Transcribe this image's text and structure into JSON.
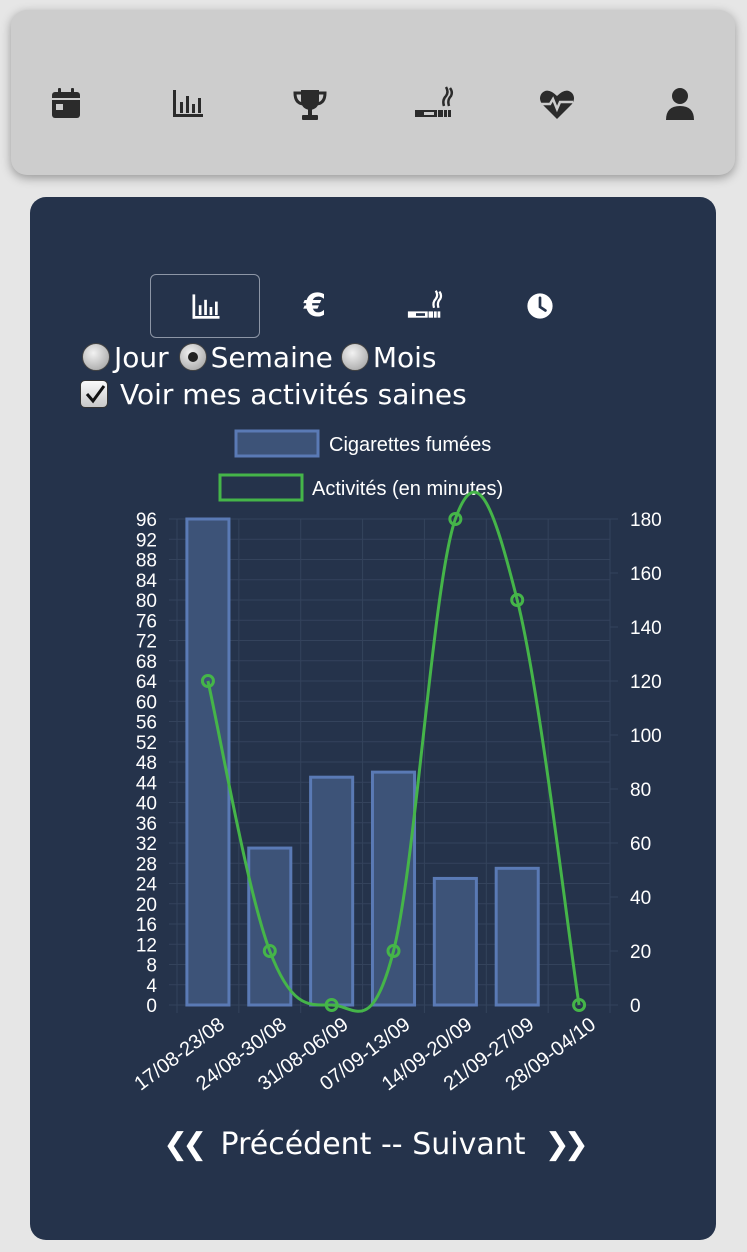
{
  "nav": {
    "items": [
      {
        "name": "calendar-icon"
      },
      {
        "name": "bar-chart-icon"
      },
      {
        "name": "trophy-icon"
      },
      {
        "name": "cigarette-icon"
      },
      {
        "name": "heart-pulse-icon"
      },
      {
        "name": "user-icon"
      }
    ]
  },
  "tabs": [
    {
      "name": "bar-chart-icon",
      "selected": true
    },
    {
      "name": "euro-icon",
      "label": "€",
      "selected": false
    },
    {
      "name": "cigarette-icon",
      "selected": false
    },
    {
      "name": "clock-icon",
      "selected": false
    }
  ],
  "period": {
    "options": [
      "Jour",
      "Semaine",
      "Mois"
    ],
    "selected": "Semaine"
  },
  "healthy_toggle": {
    "label": "Voir mes activités saines",
    "checked": true
  },
  "pager": {
    "prev_label": "Précédent",
    "separator": "--",
    "next_label": "Suivant"
  },
  "colors": {
    "card": "#25334b",
    "bar_fill": "#3d5378",
    "bar_stroke": "#5a7ab5",
    "line": "#45b549",
    "grid": "#34435c"
  },
  "chart_data": {
    "type": "bar",
    "categories": [
      "17/08-23/08",
      "24/08-30/08",
      "31/08-06/09",
      "07/09-13/09",
      "14/09-20/09",
      "21/09-27/09",
      "28/09-04/10"
    ],
    "series": [
      {
        "name": "Cigarettes fumées",
        "type": "bar",
        "axis": "left",
        "values": [
          96,
          31,
          45,
          46,
          25,
          27,
          0
        ]
      },
      {
        "name": "Activités (en minutes)",
        "type": "line",
        "axis": "right",
        "values": [
          120,
          20,
          0,
          20,
          180,
          150,
          0
        ]
      }
    ],
    "ylim_left": [
      0,
      96
    ],
    "ylim_right": [
      0,
      180
    ],
    "yticks_left": [
      "0",
      "4",
      "8",
      "12",
      "16",
      "20",
      "24",
      "28",
      "32",
      "36",
      "40",
      "44",
      "48",
      "52",
      "56",
      "60",
      "64",
      "68",
      "72",
      "76",
      "80",
      "84",
      "88",
      "92",
      "96"
    ],
    "yticks_right": [
      "0",
      "20",
      "40",
      "60",
      "80",
      "100",
      "120",
      "140",
      "160",
      "180"
    ],
    "legend_position": "top",
    "grid": true
  }
}
